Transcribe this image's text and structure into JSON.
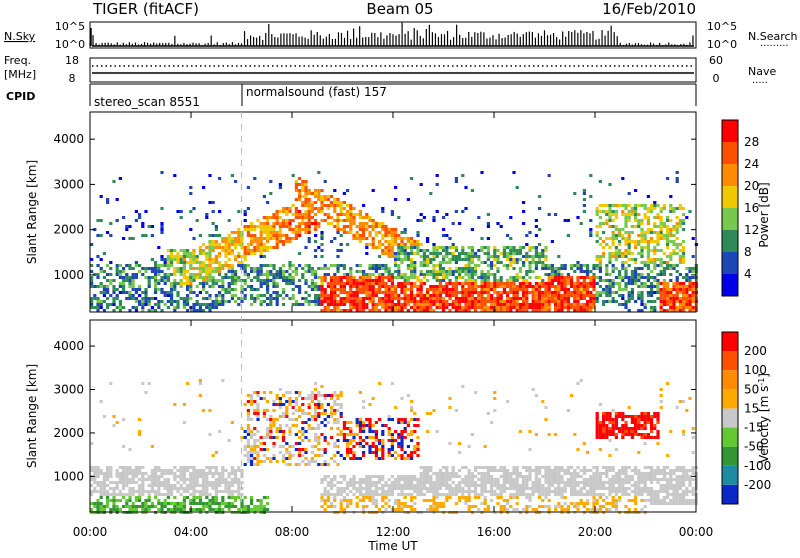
{
  "header": {
    "station": "TIGER (fitACF)",
    "beam": "Beam 05",
    "date": "16/Feb/2010"
  },
  "sky_panel": {
    "left_label": "N.Sky",
    "right_label": "N.Search",
    "left_ticks": [
      "10^5",
      "10^0"
    ],
    "right_ticks": [
      "10^5",
      "10^0"
    ]
  },
  "freq_panel": {
    "left_label_1": "Freq.",
    "left_label_2": "[MHz]",
    "right_label": "Nave",
    "left_ticks": [
      "18",
      "8"
    ],
    "right_ticks": [
      "60",
      "0"
    ]
  },
  "cpid_panel": {
    "label": "CPID",
    "modes": [
      {
        "name": "stereo_scan 8551",
        "start": "00:00",
        "end": "06:00"
      },
      {
        "name": "normalsound (fast) 157",
        "start": "06:00",
        "end": "24:00"
      }
    ]
  },
  "x_axis": {
    "label": "Time UT",
    "ticks": [
      "00:00",
      "04:00",
      "08:00",
      "12:00",
      "16:00",
      "20:00",
      "00:00"
    ],
    "range_hours": [
      0,
      24
    ]
  },
  "chart_data": [
    {
      "type": "heatmap",
      "quantity": "Power",
      "ylabel": "Slant Range [km]",
      "yticks": [
        "1000",
        "2000",
        "3000",
        "4000"
      ],
      "ylim": [
        180,
        4600
      ],
      "colorbar_label": "Power [dB]",
      "colorbar_ticks": [
        "4",
        "8",
        "12",
        "16",
        "20",
        "24",
        "28"
      ],
      "colorbar_colors": [
        "#0000e6",
        "#1e46b4",
        "#2e8b57",
        "#78c850",
        "#f0c800",
        "#ff8c00",
        "#ff5000",
        "#ff0000"
      ],
      "vmin": 0,
      "vmax": 32
    },
    {
      "type": "heatmap",
      "quantity": "Velocity",
      "ylabel": "Slant Range [km]",
      "yticks": [
        "1000",
        "2000",
        "3000",
        "4000"
      ],
      "ylim": [
        180,
        4600
      ],
      "colorbar_label": "Velocity [m s^-1]",
      "colorbar_ticks": [
        "200",
        "100",
        "50",
        "15",
        "-15",
        "-50",
        "-100",
        "-200"
      ],
      "colorbar_colors": [
        "#0a28c8",
        "#1e8ca0",
        "#329632",
        "#64c832",
        "#c8c8c8",
        "#ffaa00",
        "#ff8c00",
        "#ff5000",
        "#ff0000"
      ]
    }
  ],
  "colors": {
    "ground_scatter": "#c8c8c8",
    "axis": "#000000"
  }
}
